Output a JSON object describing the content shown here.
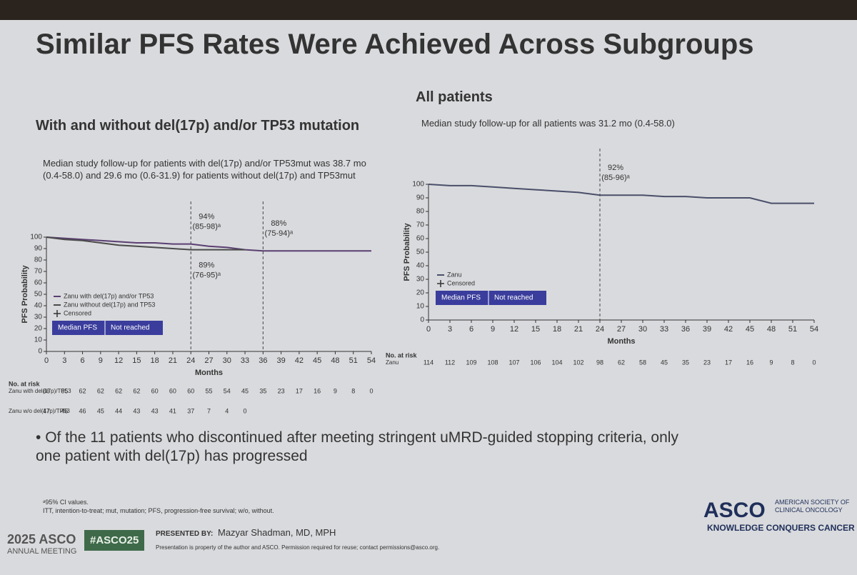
{
  "slide": {
    "title": "Similar PFS Rates Were Achieved Across Subgroups",
    "left_heading": "With and without del(17p) and/or TP53 mutation",
    "left_bullet": "Median study follow-up for patients with del(17p) and/or TP53mut was 38.7 mo (0.4-58.0) and 29.6 mo (0.6-31.9) for patients without del(17p) and TP53mut",
    "right_heading": "All patients",
    "right_bullet": "Median study follow-up for all patients was 31.2 mo (0.4-58.0)",
    "main_bullet": "Of the 11 patients who discontinued after meeting stringent uMRD-guided stopping criteria, only one patient with del(17p) has progressed",
    "footnotes": [
      "ᵃ95% CI values.",
      "ITT, intention-to-treat; mut, mutation; PFS, progression-free survival; w/o, without."
    ],
    "meeting_year": "2025 ASCO",
    "meeting_name": "ANNUAL MEETING",
    "hashtag": "#ASCO25",
    "presented_by": "PRESENTED BY:",
    "presenter": "Mazyar Shadman, MD, MPH",
    "notice": "Presentation is property of the author and ASCO. Permission required for reuse; contact permissions@asco.org.",
    "asco": "ASCO",
    "society": "AMERICAN SOCIETY OF CLINICAL ONCOLOGY",
    "tagline": "KNOWLEDGE CONQUERS CANCER"
  },
  "chart_data": [
    {
      "type": "line",
      "xlabel": "Months",
      "ylabel": "PFS Probability",
      "xlim": [
        0,
        54
      ],
      "ylim": [
        0,
        100
      ],
      "xticks": [
        0,
        3,
        6,
        9,
        12,
        15,
        18,
        21,
        24,
        27,
        30,
        33,
        36,
        39,
        42,
        45,
        48,
        51,
        54
      ],
      "yticks": [
        0,
        10,
        20,
        30,
        40,
        50,
        60,
        70,
        80,
        90,
        100
      ],
      "series": [
        {
          "name": "Zanu with del(17p) and/or TP53",
          "color": "#5b3f72",
          "x": [
            0,
            3,
            6,
            9,
            12,
            15,
            18,
            21,
            24,
            27,
            30,
            33,
            36,
            39,
            42,
            45,
            48,
            51,
            54
          ],
          "values": [
            100,
            99,
            98,
            97,
            96,
            95,
            95,
            94,
            94,
            92,
            91,
            89,
            88,
            88,
            88,
            88,
            88,
            88,
            88
          ]
        },
        {
          "name": "Zanu without del(17p) and TP53",
          "color": "#4a4a4a",
          "x": [
            0,
            3,
            6,
            9,
            12,
            15,
            18,
            21,
            24,
            27,
            30,
            33
          ],
          "values": [
            100,
            98,
            97,
            95,
            93,
            92,
            91,
            90,
            89,
            89,
            89,
            89
          ]
        }
      ],
      "censored_label": "Censored",
      "median_box": {
        "label": "Median PFS",
        "value": "Not reached"
      },
      "reference_lines": [
        24,
        36
      ],
      "annotations": [
        {
          "label": "94%",
          "ci": "(85-98)ᵃ",
          "x": 24,
          "value": 94
        },
        {
          "label": "89%",
          "ci": "(76-95)ᵃ",
          "x": 24,
          "value": 89
        },
        {
          "label": "88%",
          "ci": "(75-94)ᵃ",
          "x": 36,
          "value": 88
        }
      ],
      "at_risk": {
        "title": "No. at risk",
        "rows": [
          {
            "label": "Zanu with del(17p)/TP53",
            "values": [
              66,
              65,
              62,
              62,
              62,
              62,
              60,
              60,
              60,
              55,
              54,
              45,
              35,
              23,
              17,
              16,
              9,
              8,
              0
            ]
          },
          {
            "label": "Zanu w/o del(17p)/TP53",
            "values": [
              47,
              46,
              46,
              45,
              44,
              43,
              43,
              41,
              37,
              7,
              4,
              0
            ]
          }
        ]
      }
    },
    {
      "type": "line",
      "xlabel": "Months",
      "ylabel": "PFS Probability",
      "xlim": [
        0,
        54
      ],
      "ylim": [
        0,
        100
      ],
      "xticks": [
        0,
        3,
        6,
        9,
        12,
        15,
        18,
        21,
        24,
        27,
        30,
        33,
        36,
        39,
        42,
        45,
        48,
        51,
        54
      ],
      "yticks": [
        0,
        10,
        20,
        30,
        40,
        50,
        60,
        70,
        80,
        90,
        100
      ],
      "series": [
        {
          "name": "Zanu",
          "color": "#4a4f6a",
          "x": [
            0,
            3,
            6,
            9,
            12,
            15,
            18,
            21,
            24,
            27,
            30,
            33,
            36,
            39,
            42,
            45,
            48,
            51,
            54
          ],
          "values": [
            100,
            99,
            99,
            98,
            97,
            96,
            95,
            94,
            92,
            92,
            92,
            91,
            91,
            90,
            90,
            90,
            86,
            86,
            86
          ]
        }
      ],
      "censored_label": "Censored",
      "median_box": {
        "label": "Median PFS",
        "value": "Not reached"
      },
      "reference_lines": [
        24
      ],
      "annotations": [
        {
          "label": "92%",
          "ci": "(85-96)ᵃ",
          "x": 24,
          "value": 92
        }
      ],
      "at_risk": {
        "title": "No. at risk",
        "rows": [
          {
            "label": "Zanu",
            "values": [
              114,
              112,
              109,
              108,
              107,
              106,
              104,
              102,
              98,
              62,
              58,
              45,
              35,
              23,
              17,
              16,
              9,
              8,
              0
            ]
          }
        ]
      }
    }
  ]
}
